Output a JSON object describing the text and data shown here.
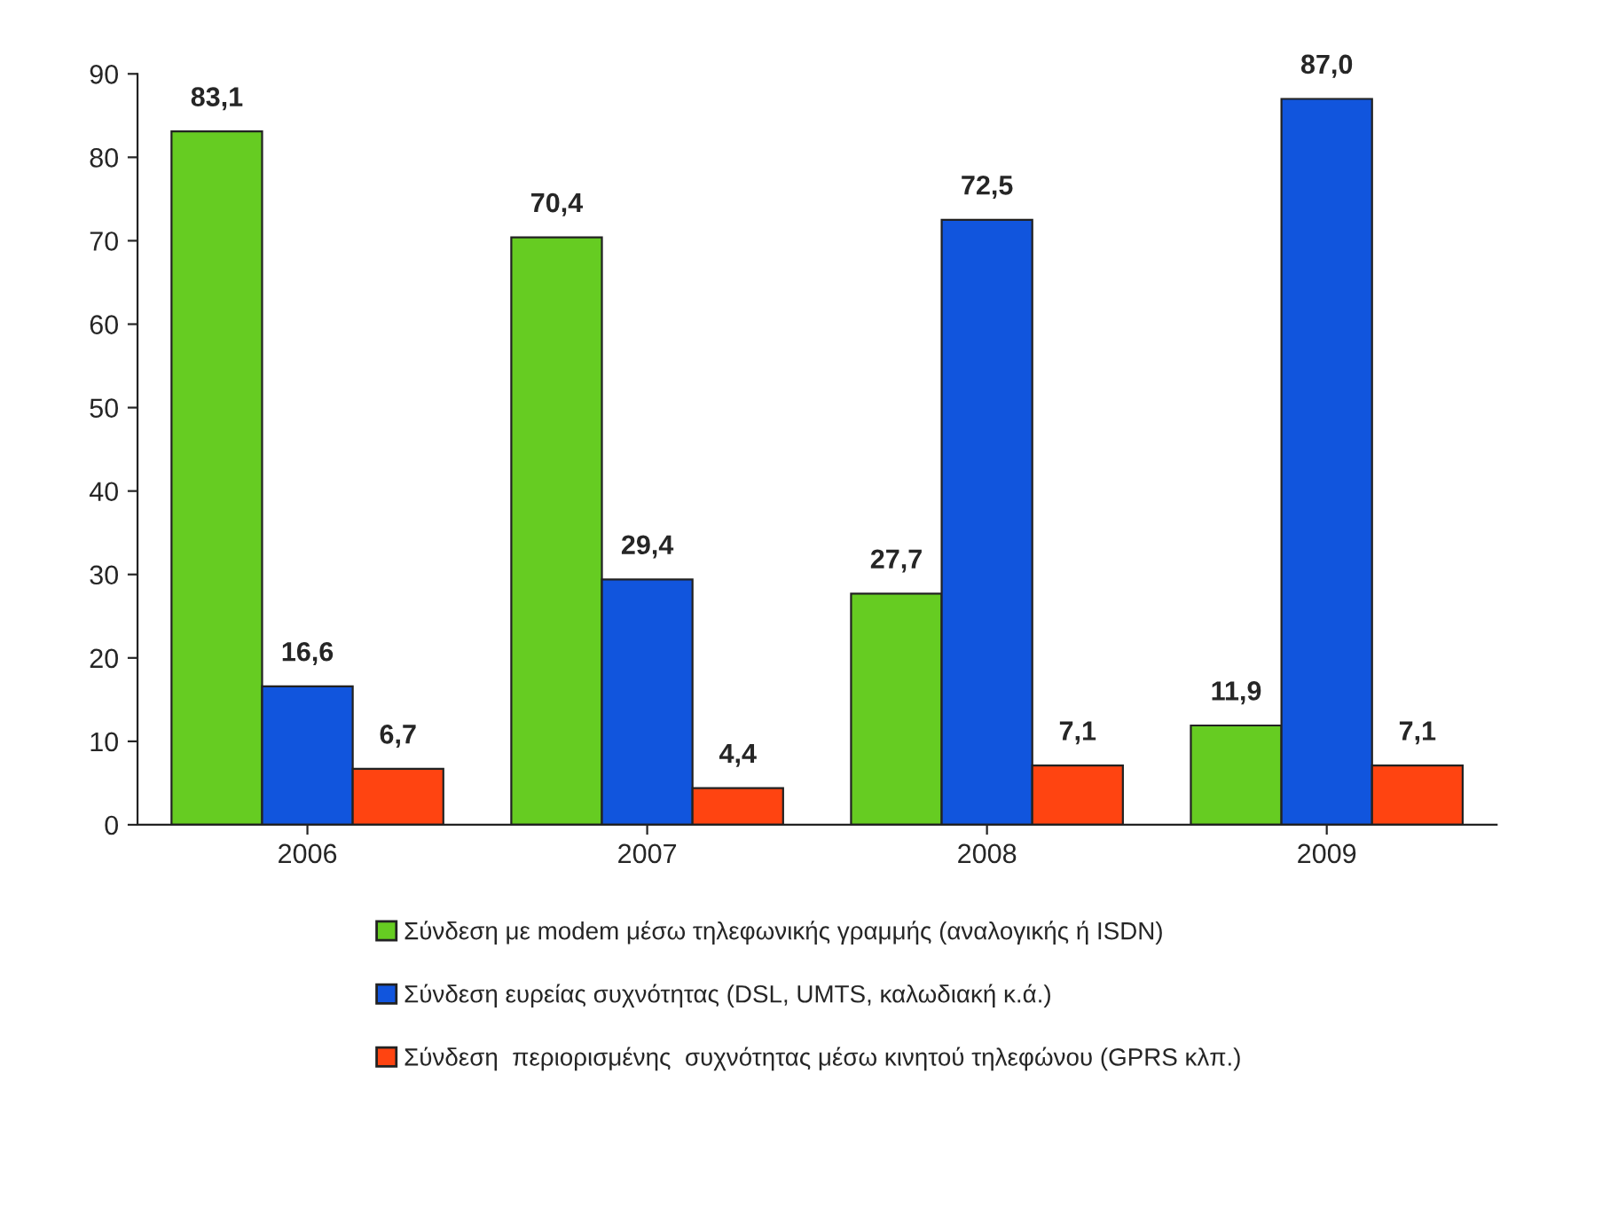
{
  "chart_data": {
    "type": "bar",
    "categories": [
      "2006",
      "2007",
      "2008",
      "2009"
    ],
    "series": [
      {
        "name": "Σύνδεση με modem μέσω τηλεφωνικής γραμμής (αναλογικής ή ISDN)",
        "color": "#66cc22",
        "values": [
          83.1,
          70.4,
          27.7,
          11.9
        ],
        "value_labels": [
          "83,1",
          "70,4",
          "27,7",
          "11,9"
        ]
      },
      {
        "name": "Σύνδεση ευρείας συχνότητας (DSL, UMTS, καλωδιακή κ.ά.)",
        "color": "#1155dd",
        "values": [
          16.6,
          29.4,
          72.5,
          87.0
        ],
        "value_labels": [
          "16,6",
          "29,4",
          "72,5",
          "87,0"
        ]
      },
      {
        "name": "Σύνδεση  περιορισμένης  συχνότητας μέσω κινητού τηλεφώνου (GPRS κλπ.)",
        "color": "#ff4411",
        "values": [
          6.7,
          4.4,
          7.1,
          7.1
        ],
        "value_labels": [
          "6,7",
          "4,4",
          "7,1",
          "7,1"
        ]
      }
    ],
    "ylim": [
      0,
      90
    ],
    "yticks": [
      0,
      10,
      20,
      30,
      40,
      50,
      60,
      70,
      80,
      90
    ],
    "grid": false,
    "legend": "bottom"
  }
}
